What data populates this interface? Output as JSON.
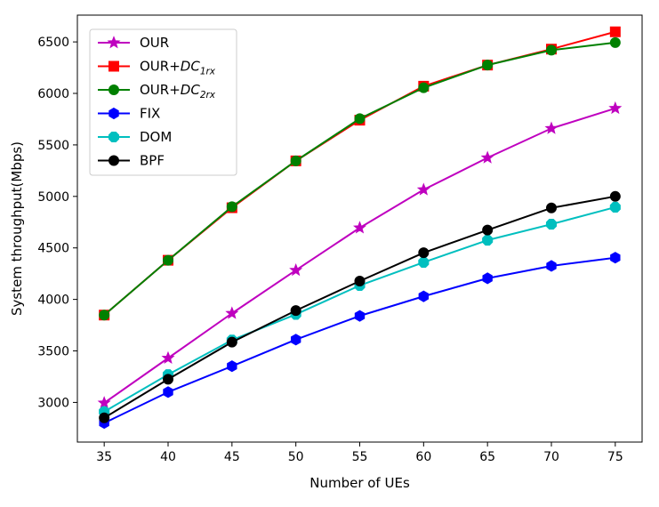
{
  "chart_data": {
    "type": "line",
    "x": [
      35,
      40,
      45,
      50,
      55,
      60,
      65,
      70,
      75
    ],
    "xlabel": "Number of UEs",
    "ylabel": "System throughput(Mbps)",
    "xlim": [
      32.9,
      77.1
    ],
    "ylim": [
      2615,
      6760
    ],
    "xticks": [
      35,
      40,
      45,
      50,
      55,
      60,
      65,
      70,
      75
    ],
    "yticks": [
      3000,
      3500,
      4000,
      4500,
      5000,
      5500,
      6000,
      6500
    ],
    "grid": false,
    "legend_position": "top-left",
    "series": [
      {
        "name": "OUR",
        "subscript": "",
        "color": "#bf00bf",
        "marker": "star",
        "values": [
          2995,
          3430,
          3865,
          4283,
          4695,
          5065,
          5375,
          5660,
          5855
        ]
      },
      {
        "name": "OUR+DC",
        "subscript": "1rx",
        "color": "#ff0000",
        "marker": "square",
        "values": [
          3848,
          4380,
          4890,
          5345,
          5740,
          6070,
          6275,
          6430,
          6598
        ]
      },
      {
        "name": "OUR+DC",
        "subscript": "2rx",
        "color": "#008000",
        "marker": "circle",
        "values": [
          3848,
          4380,
          4900,
          5345,
          5755,
          6055,
          6275,
          6420,
          6493
        ]
      },
      {
        "name": "FIX",
        "subscript": "",
        "color": "#0000ff",
        "marker": "hexagon",
        "values": [
          2800,
          3100,
          3352,
          3610,
          3840,
          4030,
          4205,
          4325,
          4405
        ]
      },
      {
        "name": "DOM",
        "subscript": "",
        "color": "#00bfbf",
        "marker": "octagon",
        "values": [
          2910,
          3270,
          3605,
          3855,
          4135,
          4360,
          4575,
          4730,
          4895
        ]
      },
      {
        "name": "BPF",
        "subscript": "",
        "color": "#000000",
        "marker": "circle",
        "values": [
          2850,
          3225,
          3585,
          3892,
          4178,
          4453,
          4673,
          4888,
          5000
        ]
      }
    ]
  }
}
